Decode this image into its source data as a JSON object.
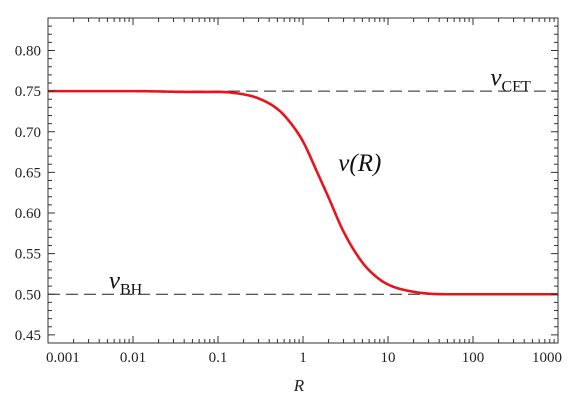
{
  "chart_data": {
    "type": "line",
    "xlabel": "R",
    "ylabel": "",
    "xscale": "log",
    "xlim": [
      0.001,
      1000
    ],
    "ylim": [
      0.44,
      0.84
    ],
    "x_ticks": [
      0.001,
      0.01,
      0.1,
      1,
      10,
      100,
      1000
    ],
    "x_tick_labels": [
      "0.001",
      "0.01",
      "0.1",
      "1",
      "10",
      "100",
      "1000"
    ],
    "y_ticks": [
      0.45,
      0.5,
      0.55,
      0.6,
      0.65,
      0.7,
      0.75,
      0.8
    ],
    "y_tick_labels": [
      "0.45",
      "0.50",
      "0.55",
      "0.60",
      "0.65",
      "0.70",
      "0.75",
      "0.80"
    ],
    "grid": false,
    "series": [
      {
        "name": "ν(R)",
        "color": "#e8141b",
        "style": "solid",
        "x": [
          0.001,
          0.01,
          0.05,
          0.1,
          0.2,
          0.3,
          0.5,
          0.7,
          1,
          1.5,
          2,
          3,
          5,
          7,
          10,
          20,
          50,
          100,
          1000
        ],
        "y": [
          0.75,
          0.75,
          0.749,
          0.749,
          0.746,
          0.741,
          0.728,
          0.712,
          0.688,
          0.648,
          0.619,
          0.577,
          0.539,
          0.523,
          0.512,
          0.503,
          0.5,
          0.5,
          0.5
        ]
      }
    ],
    "reference_lines": [
      {
        "name": "νCFT",
        "y": 0.75,
        "style": "dashed",
        "color": "#222222"
      },
      {
        "name": "νBH",
        "y": 0.5,
        "style": "dashed",
        "color": "#222222"
      }
    ],
    "annotations": {
      "curve": {
        "base": "ν",
        "paren": "(R)"
      },
      "cft": {
        "base": "ν",
        "sub": "CFT"
      },
      "bh": {
        "base": "ν",
        "sub": "BH"
      }
    }
  }
}
